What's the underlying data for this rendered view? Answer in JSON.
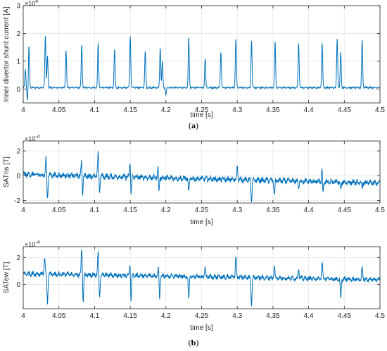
{
  "chart_data": [
    {
      "type": "line",
      "panel_label": "a",
      "xlabel": "time [s]",
      "ylabel": "Inner divertor shunt current [A]",
      "exponent_label": "×10",
      "exponent_power": "4",
      "xlim": [
        4,
        4.5
      ],
      "ylim": [
        -0.5,
        3
      ],
      "xticks": [
        "4",
        "4.05",
        "4.1",
        "4.15",
        "4.2",
        "4.25",
        "4.3",
        "4.35",
        "4.4",
        "4.45",
        "4.5"
      ],
      "yticks": [
        "0",
        "1",
        "2",
        "3"
      ],
      "ytick_values": [
        0,
        1,
        2,
        3
      ],
      "grid": true,
      "color": "#0072BD",
      "baseline": 0.05,
      "noise": 0.04,
      "spikes": [
        {
          "x": 4.003,
          "y": 0.7
        },
        {
          "x": 4.008,
          "y": 1.55
        },
        {
          "x": 4.031,
          "y": 1.9
        },
        {
          "x": 4.034,
          "y": 1.2
        },
        {
          "x": 4.06,
          "y": 1.4
        },
        {
          "x": 4.082,
          "y": 1.6
        },
        {
          "x": 4.105,
          "y": 1.65
        },
        {
          "x": 4.128,
          "y": 1.45
        },
        {
          "x": 4.15,
          "y": 2.25
        },
        {
          "x": 4.171,
          "y": 1.35
        },
        {
          "x": 4.192,
          "y": 1.5
        },
        {
          "x": 4.195,
          "y": 1.0
        },
        {
          "x": 4.232,
          "y": 1.85
        },
        {
          "x": 4.255,
          "y": 1.1
        },
        {
          "x": 4.277,
          "y": 1.35
        },
        {
          "x": 4.298,
          "y": 1.8
        },
        {
          "x": 4.32,
          "y": 1.75
        },
        {
          "x": 4.353,
          "y": 1.7
        },
        {
          "x": 4.386,
          "y": 1.65
        },
        {
          "x": 4.419,
          "y": 1.65
        },
        {
          "x": 4.44,
          "y": 1.8
        },
        {
          "x": 4.445,
          "y": 1.3
        },
        {
          "x": 4.475,
          "y": 1.75
        }
      ],
      "dips": [
        {
          "x": 4.006,
          "y": -0.42
        },
        {
          "x": 4.15,
          "y": -0.3
        },
        {
          "x": 4.2,
          "y": -0.2
        }
      ]
    },
    {
      "type": "line",
      "xlabel": "time [s]",
      "ylabel": "SATns [T]",
      "exponent_label": "×10",
      "exponent_power": "-4",
      "xlim": [
        4,
        4.5
      ],
      "ylim": [
        -2.2,
        2.8
      ],
      "xticks": [
        "4",
        "4.05",
        "4.1",
        "4.15",
        "4.2",
        "4.25",
        "4.3",
        "4.35",
        "4.4",
        "4.45",
        "4.5"
      ],
      "yticks": [
        "-2",
        "0",
        "2"
      ],
      "ytick_values": [
        -2,
        0,
        2
      ],
      "grid": true,
      "color": "#0072BD",
      "baseline": 0.1,
      "trend_end": -0.6,
      "noise": 0.35,
      "spikes": [
        {
          "x": 4.032,
          "y": 1.4
        },
        {
          "x": 4.034,
          "y": -1.8
        },
        {
          "x": 4.082,
          "y": 1.8
        },
        {
          "x": 4.083,
          "y": -1.9
        },
        {
          "x": 4.105,
          "y": 1.9
        },
        {
          "x": 4.107,
          "y": -1.2
        },
        {
          "x": 4.15,
          "y": 1.6
        },
        {
          "x": 4.151,
          "y": -2.0
        },
        {
          "x": 4.189,
          "y": 1.0
        },
        {
          "x": 4.19,
          "y": -1.6
        },
        {
          "x": 4.232,
          "y": -1.4
        },
        {
          "x": 4.3,
          "y": 0.8
        },
        {
          "x": 4.32,
          "y": -2.1
        },
        {
          "x": 4.352,
          "y": -1.5
        },
        {
          "x": 4.386,
          "y": -1.0
        },
        {
          "x": 4.419,
          "y": 0.8
        },
        {
          "x": 4.42,
          "y": -1.9
        },
        {
          "x": 4.445,
          "y": -1.2
        },
        {
          "x": 4.475,
          "y": -1.0
        }
      ]
    },
    {
      "type": "line",
      "panel_label": "b",
      "xlabel": "time [s]",
      "ylabel": "SATew [T]",
      "exponent_label": "×10",
      "exponent_power": "-4",
      "xlim": [
        4,
        4.5
      ],
      "ylim": [
        -1.8,
        2.8
      ],
      "xticks": [
        "4",
        "4.05",
        "4.1",
        "4.15",
        "4.2",
        "4.25",
        "4.3",
        "4.35",
        "4.4",
        "4.45",
        "4.5"
      ],
      "yticks": [
        "0",
        "2"
      ],
      "ytick_values": [
        0,
        2
      ],
      "grid": true,
      "color": "#0072BD",
      "baseline": 0.8,
      "trend_end": 0.35,
      "noise": 0.28,
      "spikes": [
        {
          "x": 4.03,
          "y": 2.0
        },
        {
          "x": 4.034,
          "y": -1.5
        },
        {
          "x": 4.082,
          "y": 2.7
        },
        {
          "x": 4.084,
          "y": -1.3
        },
        {
          "x": 4.105,
          "y": 2.4
        },
        {
          "x": 4.107,
          "y": -1.0
        },
        {
          "x": 4.15,
          "y": 1.9
        },
        {
          "x": 4.151,
          "y": -1.6
        },
        {
          "x": 4.19,
          "y": 1.5
        },
        {
          "x": 4.191,
          "y": -1.3
        },
        {
          "x": 4.232,
          "y": -1.2
        },
        {
          "x": 4.255,
          "y": 1.2
        },
        {
          "x": 4.298,
          "y": 2.1
        },
        {
          "x": 4.32,
          "y": -1.5
        },
        {
          "x": 4.352,
          "y": 1.3
        },
        {
          "x": 4.386,
          "y": 1.2
        },
        {
          "x": 4.419,
          "y": 1.6
        },
        {
          "x": 4.445,
          "y": -1.1
        },
        {
          "x": 4.475,
          "y": 1.3
        }
      ]
    }
  ]
}
